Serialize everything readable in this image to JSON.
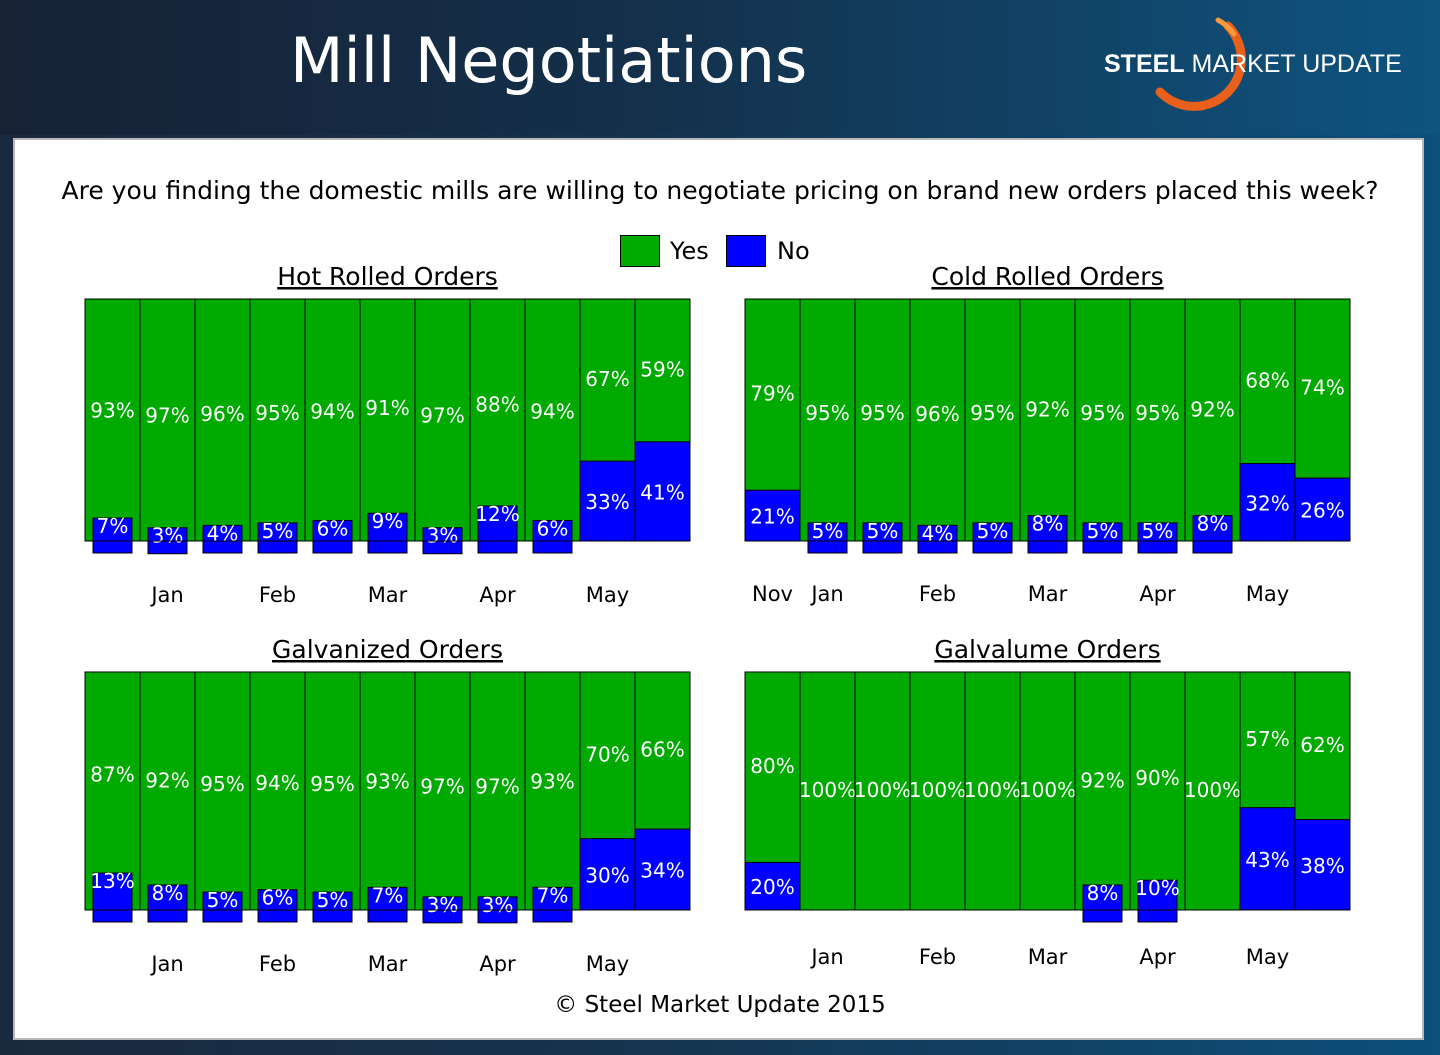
{
  "header": {
    "title": "Mill Negotiations",
    "logo_bold": "STEEL",
    "logo_rest": " MARKET UPDATE"
  },
  "question": "Are you finding the domestic mills are willing to negotiate pricing on brand new orders placed this week?",
  "legend": {
    "yes": "Yes",
    "no": "No"
  },
  "footer": "© Steel Market Update 2015",
  "colors": {
    "yes": "#00aa00",
    "no": "#0000ff"
  },
  "chart_data": [
    {
      "type": "bar",
      "title": "Hot Rolled Orders",
      "series": [
        {
          "name": "Yes",
          "values": [
            93,
            97,
            96,
            95,
            94,
            91,
            97,
            88,
            94,
            67,
            59
          ]
        },
        {
          "name": "No",
          "values": [
            7,
            3,
            4,
            5,
            6,
            9,
            3,
            12,
            6,
            33,
            41
          ]
        }
      ],
      "tick_labels": [
        {
          "label": "Jan",
          "index": 1.5
        },
        {
          "label": "Feb",
          "index": 3.5
        },
        {
          "label": "Mar",
          "index": 5.5
        },
        {
          "label": "Apr",
          "index": 7.5
        },
        {
          "label": "May",
          "index": 9.5
        }
      ],
      "ylim": [
        0,
        100
      ]
    },
    {
      "type": "bar",
      "title": "Cold Rolled Orders",
      "series": [
        {
          "name": "Yes",
          "values": [
            79,
            95,
            95,
            96,
            95,
            92,
            95,
            95,
            92,
            68,
            74
          ]
        },
        {
          "name": "No",
          "values": [
            21,
            5,
            5,
            4,
            5,
            8,
            5,
            5,
            8,
            32,
            26
          ]
        }
      ],
      "tick_labels": [
        {
          "label": "Nov",
          "index": 0.5
        },
        {
          "label": "Jan",
          "index": 1.5
        },
        {
          "label": "Feb",
          "index": 3.5
        },
        {
          "label": "Mar",
          "index": 5.5
        },
        {
          "label": "Apr",
          "index": 7.5
        },
        {
          "label": "May",
          "index": 9.5
        }
      ],
      "ylim": [
        0,
        100
      ]
    },
    {
      "type": "bar",
      "title": "Galvanized Orders",
      "series": [
        {
          "name": "Yes",
          "values": [
            87,
            92,
            95,
            94,
            95,
            93,
            97,
            97,
            93,
            70,
            66
          ]
        },
        {
          "name": "No",
          "values": [
            13,
            8,
            5,
            6,
            5,
            7,
            3,
            3,
            7,
            30,
            34
          ]
        }
      ],
      "tick_labels": [
        {
          "label": "Jan",
          "index": 1.5
        },
        {
          "label": "Feb",
          "index": 3.5
        },
        {
          "label": "Mar",
          "index": 5.5
        },
        {
          "label": "Apr",
          "index": 7.5
        },
        {
          "label": "May",
          "index": 9.5
        }
      ],
      "ylim": [
        0,
        100
      ]
    },
    {
      "type": "bar",
      "title": "Galvalume Orders",
      "series": [
        {
          "name": "Yes",
          "values": [
            80,
            100,
            100,
            100,
            100,
            100,
            92,
            90,
            100,
            57,
            62
          ]
        },
        {
          "name": "No",
          "values": [
            20,
            0,
            0,
            0,
            0,
            0,
            8,
            10,
            0,
            43,
            38
          ]
        }
      ],
      "tick_labels": [
        {
          "label": "Jan",
          "index": 1.5
        },
        {
          "label": "Feb",
          "index": 3.5
        },
        {
          "label": "Mar",
          "index": 5.5
        },
        {
          "label": "Apr",
          "index": 7.5
        },
        {
          "label": "May",
          "index": 9.5
        }
      ],
      "ylim": [
        0,
        100
      ]
    }
  ]
}
